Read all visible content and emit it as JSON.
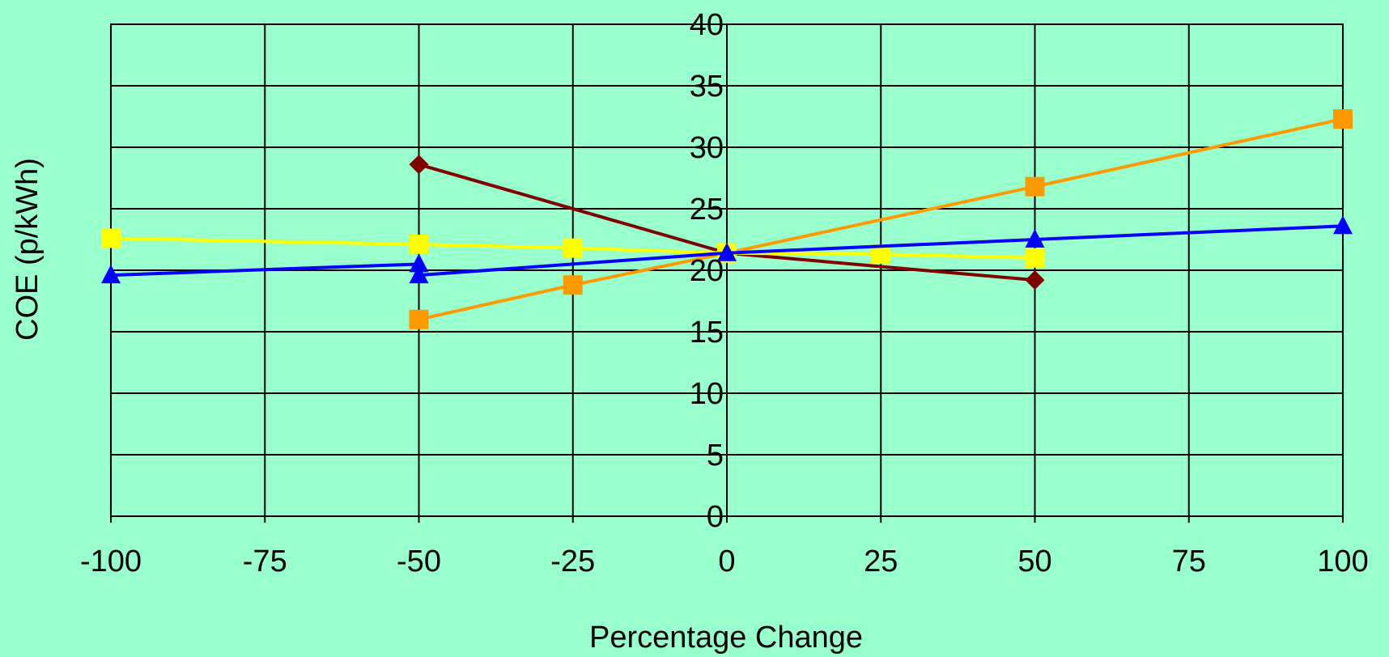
{
  "chart_data": {
    "type": "line",
    "title": "",
    "xlabel": "Percentage Change",
    "ylabel": "COE  (p/kWh)",
    "xlim": [
      -100,
      100
    ],
    "ylim": [
      0,
      40
    ],
    "x_ticks": [
      -100,
      -75,
      -50,
      -25,
      0,
      25,
      50,
      75,
      100
    ],
    "y_ticks": [
      0,
      5,
      10,
      15,
      20,
      25,
      30,
      35,
      40
    ],
    "grid": true,
    "legend": "none",
    "background_color": "#99FFCC",
    "series": [
      {
        "color": "#800000",
        "marker": "diamond",
        "x": [
          -50,
          0,
          50
        ],
        "y": [
          28.6,
          21.4,
          19.2
        ]
      },
      {
        "color": "#FF9900",
        "marker": "square",
        "x": [
          -50,
          -25,
          0,
          50,
          100
        ],
        "y": [
          16.0,
          18.8,
          21.4,
          26.8,
          32.3
        ]
      },
      {
        "color": "#FFFF00",
        "marker": "square",
        "x": [
          -100,
          -50,
          -25,
          0,
          25,
          50
        ],
        "y": [
          22.6,
          22.1,
          21.8,
          21.4,
          21.3,
          21.0
        ]
      },
      {
        "color": "#0000FF",
        "marker": "triangle",
        "x": [
          -100,
          -50,
          -50,
          0,
          50,
          100
        ],
        "y": [
          19.6,
          20.5,
          19.6,
          21.4,
          22.5,
          23.6
        ]
      }
    ]
  }
}
